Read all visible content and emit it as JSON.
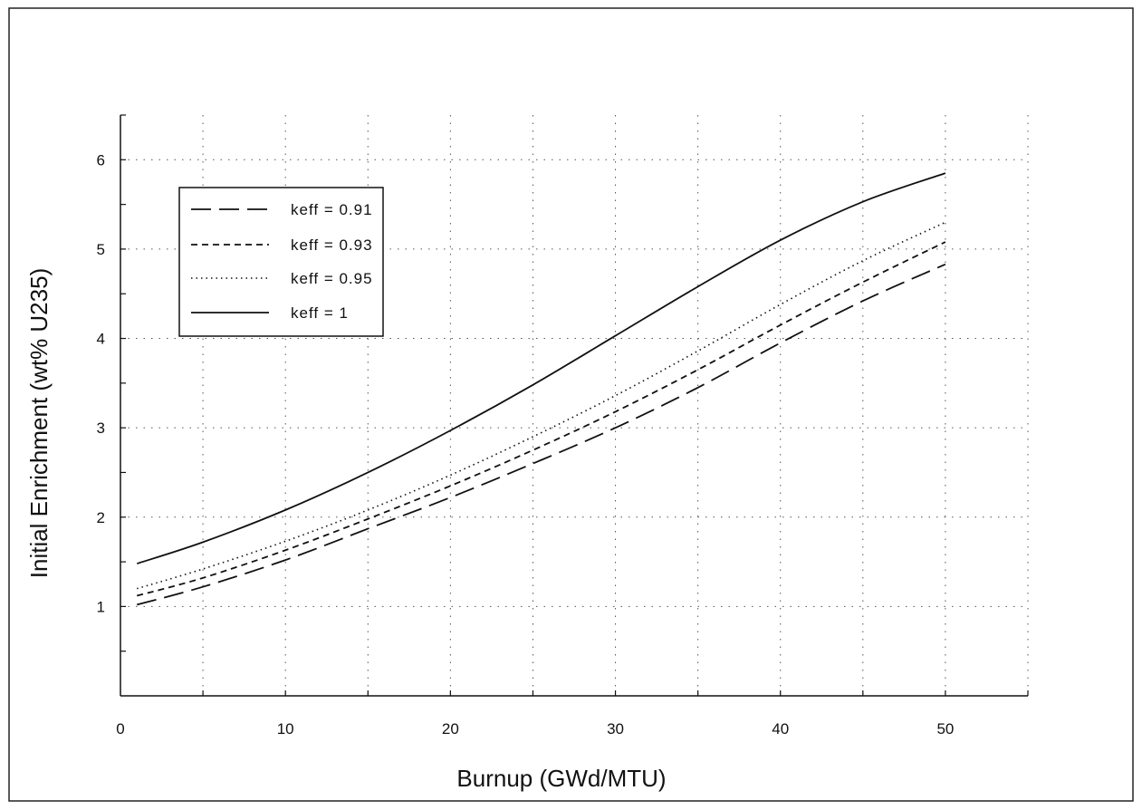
{
  "chart_data": {
    "type": "line",
    "xlabel": "Burnup (GWd/MTU)",
    "ylabel": "Initial Enrichment (wt% U235)",
    "xlim": [
      0,
      55
    ],
    "ylim": [
      0,
      6.5
    ],
    "x_ticks": [
      0,
      10,
      20,
      30,
      40,
      50
    ],
    "y_ticks": [
      1,
      2,
      3,
      4,
      5,
      6
    ],
    "grid": true,
    "grid_style": "dotted",
    "legend_position": "top-left",
    "series": [
      {
        "name": "keff = 0.91",
        "style": "dashed",
        "x": [
          1,
          5,
          10,
          15,
          20,
          25,
          30,
          35,
          40,
          45,
          50
        ],
        "y": [
          1.02,
          1.22,
          1.52,
          1.87,
          2.22,
          2.6,
          3.0,
          3.45,
          3.95,
          4.42,
          4.83
        ]
      },
      {
        "name": "keff = 0.93",
        "style": "short-dashed",
        "x": [
          1,
          5,
          10,
          15,
          20,
          25,
          30,
          35,
          40,
          45,
          50
        ],
        "y": [
          1.12,
          1.32,
          1.63,
          1.98,
          2.35,
          2.75,
          3.18,
          3.65,
          4.15,
          4.63,
          5.08
        ]
      },
      {
        "name": "keff = 0.95",
        "style": "dotted",
        "x": [
          1,
          5,
          10,
          15,
          20,
          25,
          30,
          35,
          40,
          45,
          50
        ],
        "y": [
          1.2,
          1.42,
          1.73,
          2.08,
          2.47,
          2.9,
          3.36,
          3.86,
          4.38,
          4.87,
          5.3
        ]
      },
      {
        "name": "keff = 1",
        "style": "solid",
        "x": [
          1,
          5,
          10,
          15,
          20,
          25,
          30,
          35,
          40,
          45,
          50
        ],
        "y": [
          1.48,
          1.72,
          2.08,
          2.5,
          2.97,
          3.48,
          4.03,
          4.58,
          5.1,
          5.53,
          5.85
        ]
      }
    ]
  }
}
